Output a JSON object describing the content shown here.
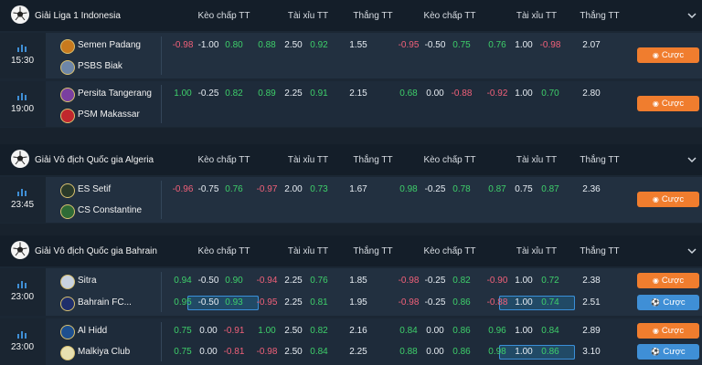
{
  "columns": [
    "Kèo chấp TT",
    "Tài xỉu TT",
    "Thắng TT",
    "Kèo chấp TT",
    "Tài xỉu TT",
    "Thắng TT"
  ],
  "bet_label": "Cược",
  "leagues": [
    {
      "name": "Giải Liga 1 Indonesia",
      "matches": [
        {
          "time": "15:30",
          "rows": [
            {
              "team": "Semen Padang",
              "h1": [
                "-0.98",
                "-1.00",
                "0.80"
              ],
              "ou1": [
                "0.88",
                "2.50",
                "0.92"
              ],
              "win1": "1.55",
              "h2": [
                "-0.95",
                "-0.50",
                "0.75"
              ],
              "ou2": [
                "0.76",
                "1.00",
                "-0.98"
              ],
              "win2": "2.07"
            },
            {
              "team": "PSBS Biak"
            }
          ]
        },
        {
          "time": "19:00",
          "rows": [
            {
              "team": "Persita Tangerang",
              "h1": [
                "1.00",
                "-0.25",
                "0.82"
              ],
              "ou1": [
                "0.89",
                "2.25",
                "0.91"
              ],
              "win1": "2.15",
              "h2": [
                "0.68",
                "0.00",
                "-0.88"
              ],
              "ou2": [
                "-0.92",
                "1.00",
                "0.70"
              ],
              "win2": "2.80"
            },
            {
              "team": "PSM Makassar"
            }
          ]
        }
      ]
    },
    {
      "name": "Giải Vô địch Quốc gia Algeria",
      "matches": [
        {
          "time": "23:45",
          "rows": [
            {
              "team": "ES Setif",
              "h1": [
                "-0.96",
                "-0.75",
                "0.76"
              ],
              "ou1": [
                "-0.97",
                "2.00",
                "0.73"
              ],
              "win1": "1.67",
              "h2": [
                "0.98",
                "-0.25",
                "0.78"
              ],
              "ou2": [
                "0.87",
                "0.75",
                "0.87"
              ],
              "win2": "2.36"
            },
            {
              "team": "CS Constantine"
            }
          ]
        }
      ]
    },
    {
      "name": "Giải Vô địch Quốc gia Bahrain",
      "matches": [
        {
          "time": "23:00",
          "rows": [
            {
              "team": "Sitra",
              "h1": [
                "0.94",
                "-0.50",
                "0.90"
              ],
              "ou1": [
                "-0.94",
                "2.25",
                "0.76"
              ],
              "win1": "1.85",
              "h2": [
                "-0.98",
                "-0.25",
                "0.82"
              ],
              "ou2": [
                "-0.90",
                "1.00",
                "0.72"
              ],
              "win2": "2.38"
            },
            {
              "team": "Bahrain FC...",
              "h1": [
                "0.95",
                "-0.50",
                "0.93"
              ],
              "ou1": [
                "-0.95",
                "2.25",
                "0.81"
              ],
              "win1": "1.95",
              "h2": [
                "-0.98",
                "-0.25",
                "0.86"
              ],
              "ou2": [
                "-0.88",
                "1.00",
                "0.74"
              ],
              "win2": "2.51"
            }
          ]
        },
        {
          "time": "23:00",
          "rows": [
            {
              "team": "Al Hidd",
              "h1": [
                "0.75",
                "0.00",
                "-0.91"
              ],
              "ou1": [
                "1.00",
                "2.50",
                "0.82"
              ],
              "win1": "2.16",
              "h2": [
                "0.84",
                "0.00",
                "0.86"
              ],
              "ou2": [
                "0.96",
                "1.00",
                "0.84"
              ],
              "win2": "2.89"
            },
            {
              "team": "Malkiya Club",
              "h1": [
                "0.75",
                "0.00",
                "-0.81"
              ],
              "ou1": [
                "-0.98",
                "2.50",
                "0.84"
              ],
              "win1": "2.25",
              "h2": [
                "0.88",
                "0.00",
                "0.86"
              ],
              "ou2": [
                "0.98",
                "1.00",
                "0.86"
              ],
              "win2": "3.10"
            }
          ]
        }
      ]
    }
  ]
}
